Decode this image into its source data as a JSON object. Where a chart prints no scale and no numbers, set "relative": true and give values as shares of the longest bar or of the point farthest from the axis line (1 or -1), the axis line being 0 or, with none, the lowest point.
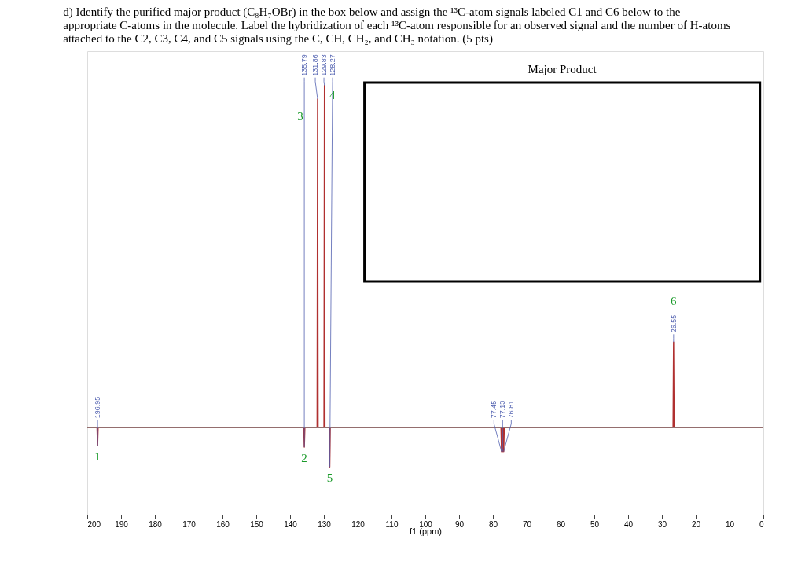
{
  "chart_data": {
    "type": "line",
    "title": "d) Identify the purified major product (C₈H₇OBr) in the box below and assign the ¹³C-atom signals labeled C1 and C6 below to the appropriate C-atoms in the molecule. Label the hybridization of each ¹³C-atom responsible for an observed signal and the number of H-atoms attached to the C2, C3, C4, and C5 signals using the C, CH, CH₂, and CH₃ notation. (5 pts)",
    "xlabel": "f1 (ppm)",
    "relative": true,
    "xlim": [
      200,
      0
    ],
    "xticks": [
      200,
      190,
      180,
      170,
      160,
      150,
      140,
      130,
      120,
      110,
      100,
      90,
      80,
      70,
      60,
      50,
      40,
      30,
      20,
      10,
      0
    ],
    "grid": false,
    "marker": "none",
    "line_style": "solid",
    "tick_labels": "x",
    "series": [
      {
        "color": "#b03030",
        "x": [
          200,
          197.1,
          196.95,
          196.8,
          135.95,
          135.79,
          135.63,
          132.0,
          131.86,
          131.72,
          129.97,
          129.83,
          129.69,
          128.41,
          128.27,
          128.13,
          77.6,
          77.45,
          77.3,
          77.13,
          76.96,
          76.81,
          76.65,
          26.7,
          26.55,
          26.4,
          0
        ],
        "values": [
          0,
          0,
          -0.053,
          0,
          0,
          -0.057,
          0,
          0,
          0.96,
          0,
          0,
          1,
          0,
          0,
          -0.115,
          0,
          0,
          -0.07,
          0,
          -0.07,
          0,
          -0.07,
          0,
          0,
          0.25,
          0,
          0
        ]
      }
    ],
    "annotations": [
      "Major Product",
      {
        "text": "196.95",
        "x": 196.95,
        "y": -0.053
      },
      {
        "text": "1",
        "x": 196.95,
        "y": -0.053
      },
      {
        "text": "135.79",
        "x": 135.79,
        "y": -0.057
      },
      {
        "text": "2",
        "x": 135.79,
        "y": -0.057
      },
      {
        "text": "131.86",
        "x": 131.86,
        "y": 0.96
      },
      {
        "text": "3",
        "x": 131.86,
        "y": 0.96
      },
      {
        "text": "129.83",
        "x": 129.83,
        "y": 1
      },
      {
        "text": "4",
        "x": 129.83,
        "y": 1
      },
      {
        "text": "128.27",
        "x": 128.27,
        "y": -0.115
      },
      {
        "text": "5",
        "x": 128.27,
        "y": -0.115
      },
      {
        "text": "77.45",
        "x": 77.45,
        "y": -0.07
      },
      {
        "text": "77.13",
        "x": 77.13,
        "y": -0.07
      },
      {
        "text": "76.81",
        "x": 76.81,
        "y": -0.07
      },
      {
        "text": "26.55",
        "x": 26.55,
        "y": 0.25
      },
      {
        "text": "6",
        "x": 26.55,
        "y": 0.25
      }
    ]
  }
}
